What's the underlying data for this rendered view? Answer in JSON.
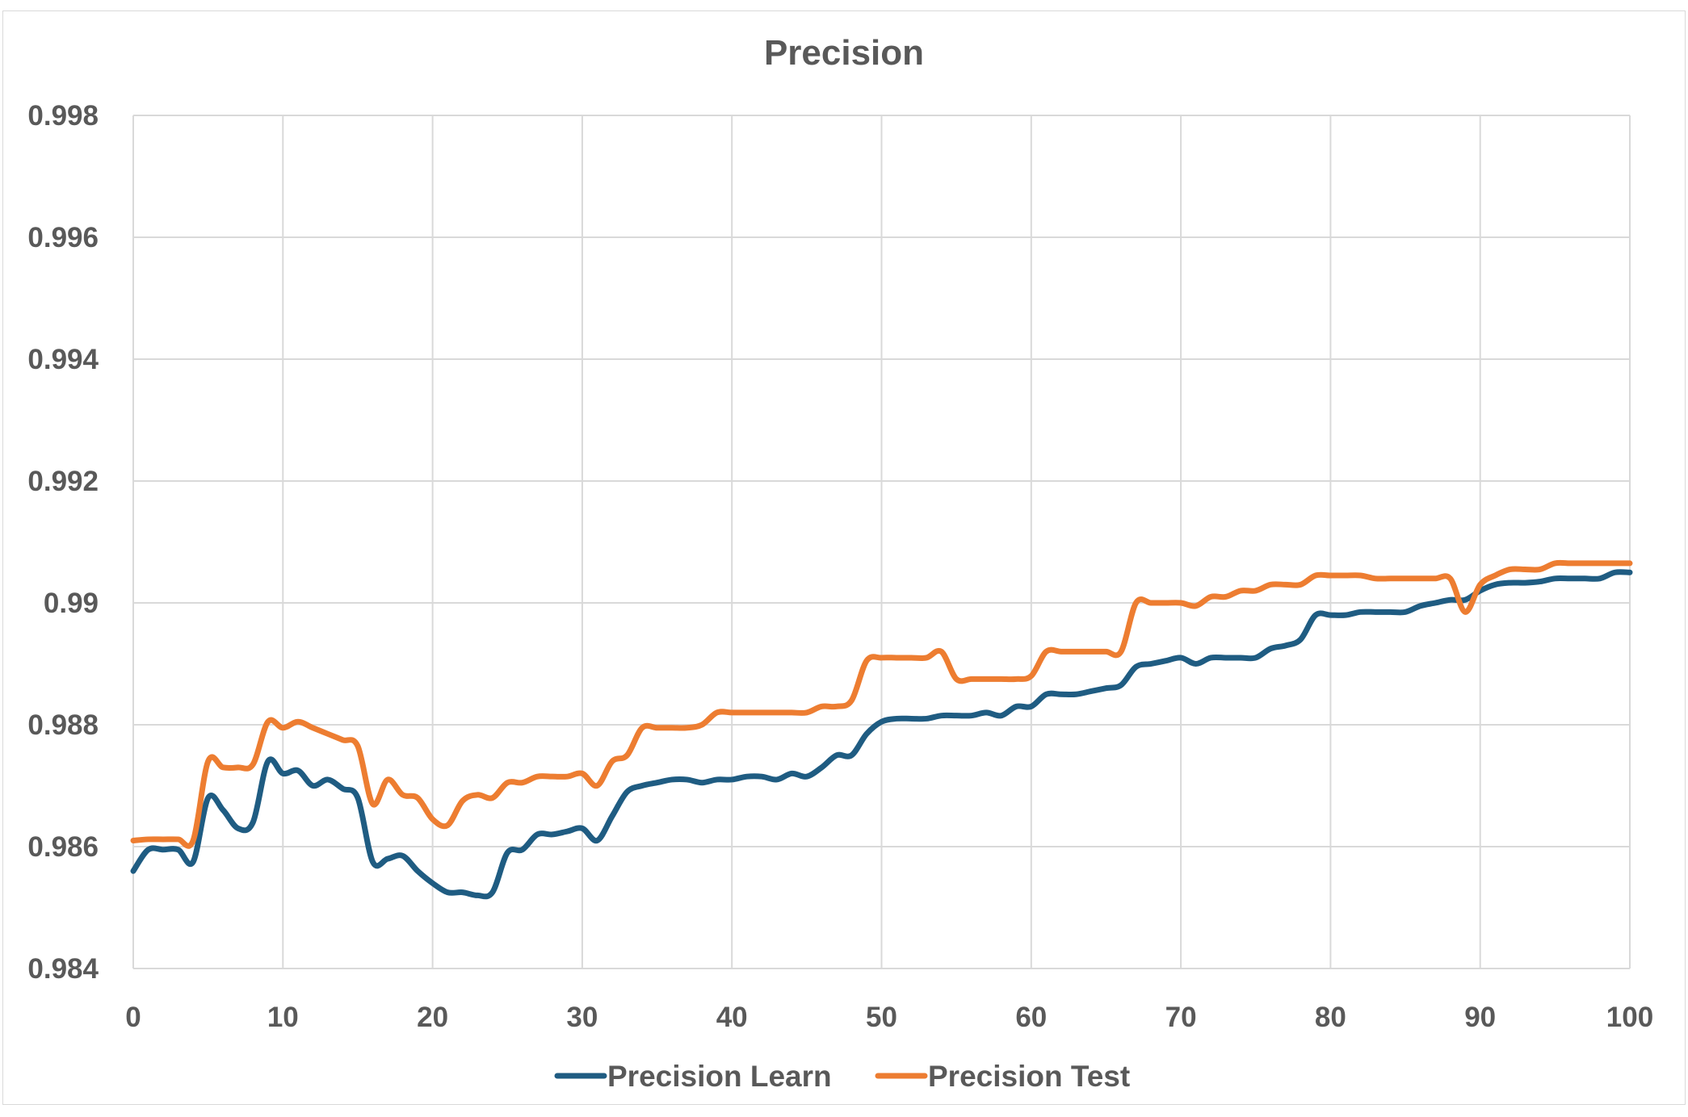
{
  "chart_data": {
    "type": "line",
    "title": "Precision",
    "xlabel": "",
    "ylabel": "",
    "xlim": [
      0,
      100
    ],
    "ylim": [
      0.984,
      0.998
    ],
    "x_ticks": [
      "0",
      "10",
      "20",
      "30",
      "40",
      "50",
      "60",
      "70",
      "80",
      "90",
      "100"
    ],
    "y_ticks": [
      "0.984",
      "0.986",
      "0.988",
      "0.99",
      "0.992",
      "0.994",
      "0.996",
      "0.998"
    ],
    "grid": true,
    "legend_position": "bottom",
    "colors": {
      "Precision Learn": "#1f5c82",
      "Precision Test": "#ed7d31"
    },
    "series": [
      {
        "name": "Precision Learn",
        "x": [
          0,
          1,
          2,
          3,
          4,
          5,
          6,
          7,
          8,
          9,
          10,
          11,
          12,
          13,
          14,
          15,
          16,
          17,
          18,
          19,
          20,
          21,
          22,
          23,
          24,
          25,
          26,
          27,
          28,
          29,
          30,
          31,
          32,
          33,
          34,
          35,
          36,
          37,
          38,
          39,
          40,
          41,
          42,
          43,
          44,
          45,
          46,
          47,
          48,
          49,
          50,
          51,
          52,
          53,
          54,
          55,
          56,
          57,
          58,
          59,
          60,
          61,
          62,
          63,
          64,
          65,
          66,
          67,
          68,
          69,
          70,
          71,
          72,
          73,
          74,
          75,
          76,
          77,
          78,
          79,
          80,
          81,
          82,
          83,
          84,
          85,
          86,
          87,
          88,
          89,
          90,
          91,
          92,
          93,
          94,
          95,
          96,
          97,
          98,
          99,
          100
        ],
        "values": [
          0.9856,
          0.98595,
          0.98595,
          0.98595,
          0.98575,
          0.9868,
          0.9866,
          0.9863,
          0.9864,
          0.9874,
          0.9872,
          0.98725,
          0.987,
          0.9871,
          0.98695,
          0.9868,
          0.98575,
          0.9858,
          0.98585,
          0.9856,
          0.9854,
          0.98525,
          0.98525,
          0.9852,
          0.98525,
          0.9859,
          0.98595,
          0.9862,
          0.9862,
          0.98625,
          0.9863,
          0.9861,
          0.9865,
          0.9869,
          0.987,
          0.98705,
          0.9871,
          0.9871,
          0.98705,
          0.9871,
          0.9871,
          0.98715,
          0.98715,
          0.9871,
          0.9872,
          0.98715,
          0.9873,
          0.9875,
          0.9875,
          0.98785,
          0.98805,
          0.9881,
          0.9881,
          0.9881,
          0.98815,
          0.98815,
          0.98815,
          0.9882,
          0.98815,
          0.9883,
          0.9883,
          0.9885,
          0.9885,
          0.9885,
          0.98855,
          0.9886,
          0.98865,
          0.98895,
          0.989,
          0.98905,
          0.9891,
          0.989,
          0.9891,
          0.9891,
          0.9891,
          0.9891,
          0.98925,
          0.9893,
          0.9894,
          0.9898,
          0.9898,
          0.9898,
          0.98985,
          0.98985,
          0.98985,
          0.98985,
          0.98995,
          0.99,
          0.99005,
          0.99005,
          0.9902,
          0.9903,
          0.99033,
          0.99033,
          0.99035,
          0.9904,
          0.9904,
          0.9904,
          0.9904,
          0.9905,
          0.9905
        ]
      },
      {
        "name": "Precision Test",
        "x": [
          0,
          1,
          2,
          3,
          4,
          5,
          6,
          7,
          8,
          9,
          10,
          11,
          12,
          13,
          14,
          15,
          16,
          17,
          18,
          19,
          20,
          21,
          22,
          23,
          24,
          25,
          26,
          27,
          28,
          29,
          30,
          31,
          32,
          33,
          34,
          35,
          36,
          37,
          38,
          39,
          40,
          41,
          42,
          43,
          44,
          45,
          46,
          47,
          48,
          49,
          50,
          51,
          52,
          53,
          54,
          55,
          56,
          57,
          58,
          59,
          60,
          61,
          62,
          63,
          64,
          65,
          66,
          67,
          68,
          69,
          70,
          71,
          72,
          73,
          74,
          75,
          76,
          77,
          78,
          79,
          80,
          81,
          82,
          83,
          84,
          85,
          86,
          87,
          88,
          89,
          90,
          91,
          92,
          93,
          94,
          95,
          96,
          97,
          98,
          99,
          100
        ],
        "values": [
          0.9861,
          0.98612,
          0.98612,
          0.98612,
          0.9861,
          0.9874,
          0.9873,
          0.9873,
          0.98735,
          0.98805,
          0.98795,
          0.98805,
          0.98795,
          0.98785,
          0.98775,
          0.98765,
          0.9867,
          0.9871,
          0.98685,
          0.9868,
          0.98645,
          0.98635,
          0.98675,
          0.98685,
          0.9868,
          0.98705,
          0.98705,
          0.98715,
          0.98715,
          0.98715,
          0.9872,
          0.987,
          0.9874,
          0.9875,
          0.98795,
          0.98795,
          0.98795,
          0.98795,
          0.988,
          0.9882,
          0.9882,
          0.9882,
          0.9882,
          0.9882,
          0.9882,
          0.9882,
          0.9883,
          0.9883,
          0.9884,
          0.98905,
          0.9891,
          0.9891,
          0.9891,
          0.9891,
          0.9892,
          0.98875,
          0.98875,
          0.98875,
          0.98875,
          0.98875,
          0.9888,
          0.9892,
          0.9892,
          0.9892,
          0.9892,
          0.9892,
          0.9892,
          0.99,
          0.99,
          0.99,
          0.99,
          0.98995,
          0.9901,
          0.9901,
          0.9902,
          0.9902,
          0.9903,
          0.9903,
          0.9903,
          0.99045,
          0.99045,
          0.99045,
          0.99045,
          0.9904,
          0.9904,
          0.9904,
          0.9904,
          0.9904,
          0.9904,
          0.98985,
          0.9903,
          0.99045,
          0.99055,
          0.99055,
          0.99055,
          0.99065,
          0.99065,
          0.99065,
          0.99065,
          0.99065,
          0.99065
        ]
      }
    ]
  }
}
